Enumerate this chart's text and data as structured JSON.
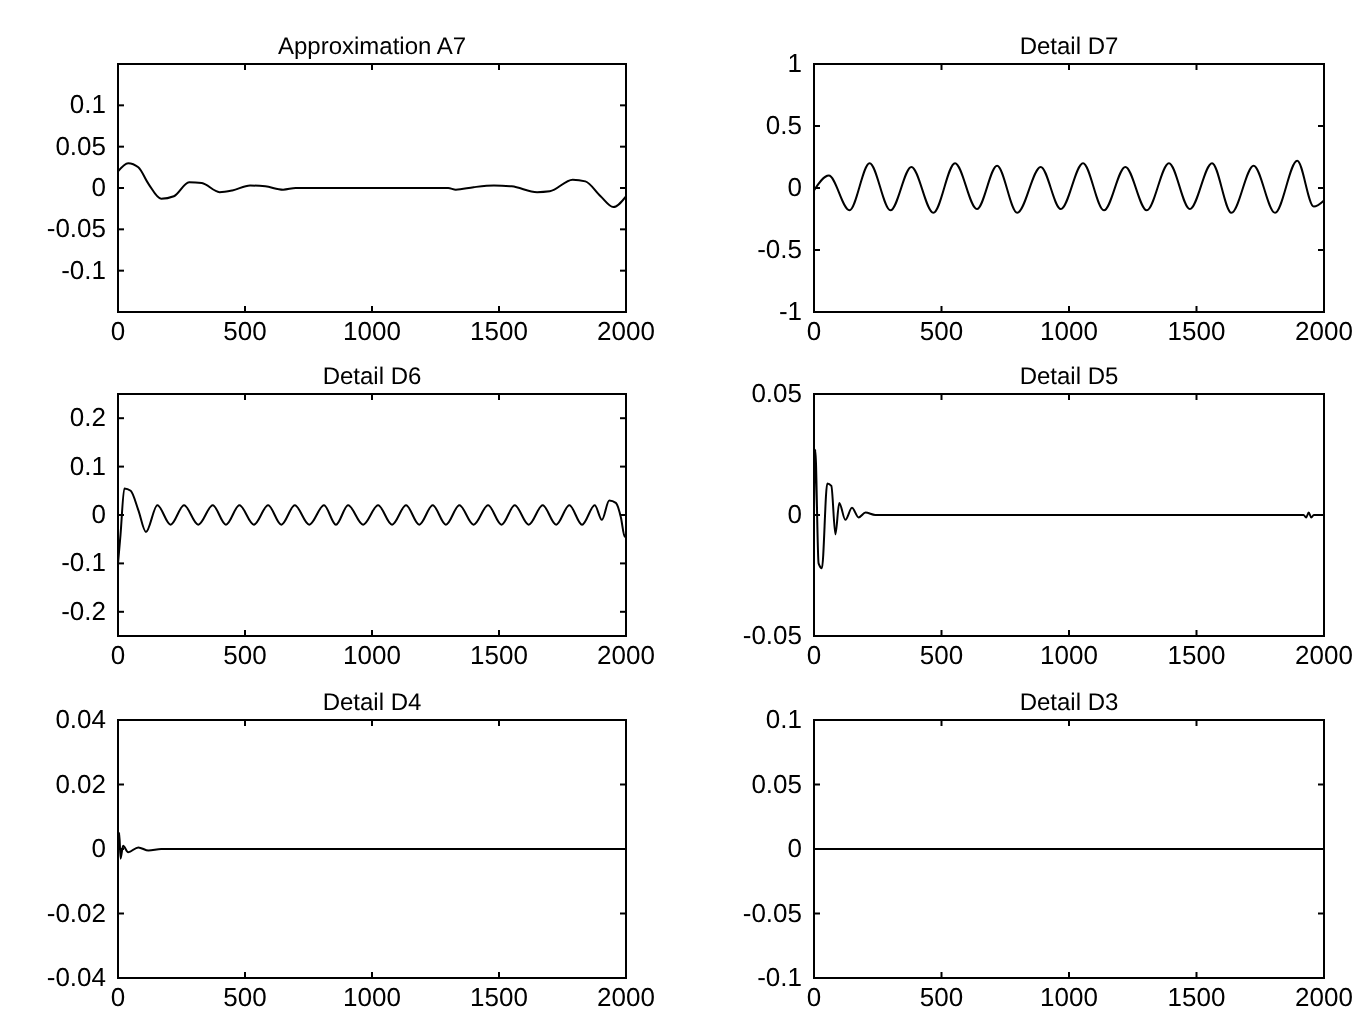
{
  "chart_data": [
    {
      "type": "line",
      "title": "Approximation A7",
      "x": [
        0,
        40,
        80,
        120,
        170,
        220,
        280,
        330,
        400,
        450,
        520,
        580,
        650,
        700,
        1300,
        1330,
        1400,
        1480,
        1550,
        1650,
        1700,
        1790,
        1840,
        1900,
        1950,
        2000
      ],
      "series": [
        {
          "color": "#000000",
          "values": [
            0.02,
            0.03,
            0.025,
            0.005,
            -0.013,
            -0.01,
            0.007,
            0.006,
            -0.005,
            -0.003,
            0.003,
            0.002,
            -0.002,
            0,
            0,
            -0.002,
            0.001,
            0.003,
            0.002,
            -0.005,
            -0.004,
            0.01,
            0.008,
            -0.01,
            -0.023,
            -0.01
          ]
        }
      ],
      "xlim": [
        0,
        2000
      ],
      "xticks": [
        0,
        500,
        1000,
        1500,
        2000
      ],
      "ylim": [
        -0.15,
        0.15
      ],
      "yticks": [
        -0.1,
        -0.05,
        0,
        0.05,
        0.1
      ]
    },
    {
      "type": "line",
      "title": "Detail D7",
      "x": [
        0,
        58,
        139,
        218,
        300,
        382,
        468,
        553,
        639,
        718,
        797,
        889,
        968,
        1055,
        1137,
        1221,
        1305,
        1392,
        1474,
        1561,
        1637,
        1724,
        1808,
        1895,
        1960,
        2000
      ],
      "series": [
        {
          "color": "#000000",
          "values": [
            -0.02,
            0.1,
            -0.18,
            0.2,
            -0.18,
            0.17,
            -0.2,
            0.2,
            -0.17,
            0.18,
            -0.2,
            0.17,
            -0.17,
            0.2,
            -0.18,
            0.17,
            -0.18,
            0.2,
            -0.17,
            0.2,
            -0.2,
            0.18,
            -0.2,
            0.22,
            -0.15,
            -0.1
          ]
        }
      ],
      "xlim": [
        0,
        2000
      ],
      "xticks": [
        0,
        500,
        1000,
        1500,
        2000
      ],
      "ylim": [
        -1,
        1
      ],
      "yticks": [
        -1,
        -0.5,
        0,
        0.5,
        1
      ]
    },
    {
      "type": "line",
      "title": "Detail D6",
      "x": [
        0,
        10,
        25,
        50,
        80,
        110,
        155,
        207,
        260,
        316,
        373,
        425,
        478,
        535,
        591,
        643,
        696,
        753,
        811,
        858,
        906,
        965,
        1024,
        1079,
        1134,
        1186,
        1239,
        1291,
        1344,
        1400,
        1457,
        1510,
        1562,
        1617,
        1672,
        1725,
        1777,
        1827,
        1877,
        1905,
        1934,
        1960,
        1980,
        1995,
        2000
      ],
      "series": [
        {
          "color": "#000000",
          "values": [
            -0.1,
            -0.04,
            0.055,
            0.05,
            0.01,
            -0.035,
            0.02,
            -0.02,
            0.02,
            -0.02,
            0.02,
            -0.02,
            0.02,
            -0.02,
            0.02,
            -0.02,
            0.02,
            -0.02,
            0.02,
            -0.02,
            0.02,
            -0.02,
            0.02,
            -0.02,
            0.02,
            -0.02,
            0.02,
            -0.02,
            0.02,
            -0.02,
            0.02,
            -0.02,
            0.02,
            -0.02,
            0.02,
            -0.02,
            0.02,
            -0.02,
            0.02,
            -0.01,
            0.03,
            0.025,
            -0.005,
            -0.045,
            -0.04
          ]
        }
      ],
      "xlim": [
        0,
        2000
      ],
      "xticks": [
        0,
        500,
        1000,
        1500,
        2000
      ],
      "ylim": [
        -0.25,
        0.25
      ],
      "yticks": [
        -0.2,
        -0.1,
        0,
        0.1,
        0.2
      ]
    },
    {
      "type": "line",
      "title": "Detail D5",
      "x": [
        0,
        5,
        18,
        31,
        52,
        68,
        84,
        99,
        123,
        149,
        175,
        202,
        240,
        1920,
        1930,
        1940,
        1950,
        1960,
        2000
      ],
      "series": [
        {
          "color": "#000000",
          "values": [
            0,
            0.027,
            -0.02,
            -0.022,
            0.013,
            0.012,
            -0.008,
            0.005,
            -0.002,
            0.003,
            -0.001,
            0.001,
            0,
            0,
            -0.001,
            0.001,
            -0.001,
            0,
            0
          ]
        }
      ],
      "xlim": [
        0,
        2000
      ],
      "xticks": [
        0,
        500,
        1000,
        1500,
        2000
      ],
      "ylim": [
        -0.05,
        0.05
      ],
      "yticks": [
        -0.05,
        0,
        0.05
      ]
    },
    {
      "type": "line",
      "title": "Detail D4",
      "x": [
        0,
        5,
        10,
        20,
        40,
        80,
        120,
        170,
        2000
      ],
      "series": [
        {
          "color": "#000000",
          "values": [
            0,
            0.005,
            -0.003,
            0.001,
            -0.001,
            0.0005,
            -0.0005,
            0,
            0
          ]
        }
      ],
      "xlim": [
        0,
        2000
      ],
      "xticks": [
        0,
        500,
        1000,
        1500,
        2000
      ],
      "ylim": [
        -0.04,
        0.04
      ],
      "yticks": [
        -0.04,
        -0.02,
        0,
        0.02,
        0.04
      ]
    },
    {
      "type": "line",
      "title": "Detail D3",
      "x": [
        0,
        150,
        2000
      ],
      "series": [
        {
          "color": "#000000",
          "values": [
            0,
            0,
            0
          ]
        }
      ],
      "xlim": [
        0,
        2000
      ],
      "xticks": [
        0,
        500,
        1000,
        1500,
        2000
      ],
      "ylim": [
        -0.1,
        0.1
      ],
      "yticks": [
        -0.1,
        -0.05,
        0,
        0.05,
        0.1
      ]
    }
  ]
}
